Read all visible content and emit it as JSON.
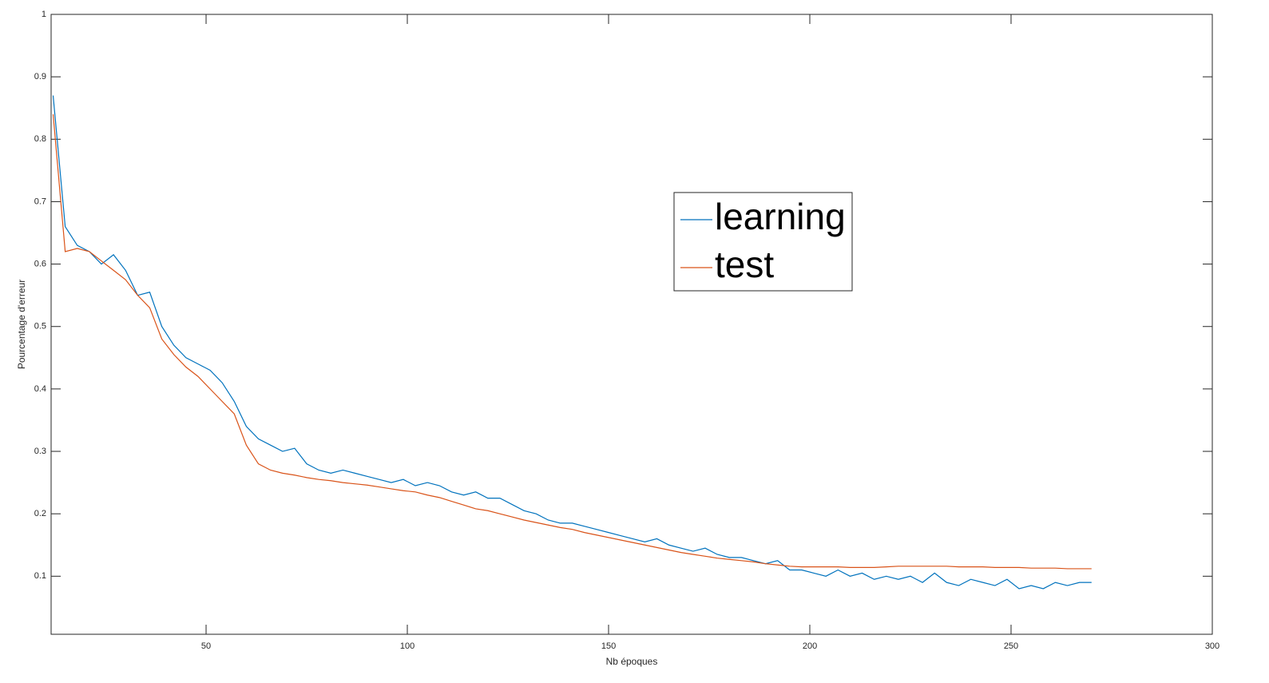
{
  "chart_data": {
    "type": "line",
    "xlabel": "Nb époques",
    "ylabel": "Pourcentage d'erreur",
    "x": [
      12,
      15,
      18,
      21,
      24,
      27,
      30,
      33,
      36,
      39,
      42,
      45,
      48,
      51,
      54,
      57,
      60,
      63,
      66,
      69,
      72,
      75,
      78,
      81,
      84,
      87,
      90,
      93,
      96,
      99,
      102,
      105,
      108,
      111,
      114,
      117,
      120,
      123,
      126,
      129,
      132,
      135,
      138,
      141,
      144,
      147,
      150,
      153,
      156,
      159,
      162,
      165,
      168,
      171,
      174,
      177,
      180,
      183,
      186,
      189,
      192,
      195,
      198,
      201,
      204,
      207,
      210,
      213,
      216,
      219,
      222,
      225,
      228,
      231,
      234,
      237,
      240,
      243,
      246,
      249,
      252,
      255,
      258,
      261,
      264,
      267,
      270
    ],
    "series": [
      {
        "name": "learning",
        "color": "#0072BD",
        "values": [
          0.87,
          0.66,
          0.63,
          0.62,
          0.6,
          0.615,
          0.59,
          0.55,
          0.555,
          0.5,
          0.47,
          0.45,
          0.44,
          0.43,
          0.41,
          0.38,
          0.34,
          0.32,
          0.31,
          0.3,
          0.305,
          0.28,
          0.27,
          0.265,
          0.27,
          0.265,
          0.26,
          0.255,
          0.25,
          0.255,
          0.245,
          0.25,
          0.245,
          0.235,
          0.23,
          0.235,
          0.225,
          0.225,
          0.215,
          0.205,
          0.2,
          0.19,
          0.185,
          0.185,
          0.18,
          0.175,
          0.17,
          0.165,
          0.16,
          0.155,
          0.16,
          0.15,
          0.145,
          0.14,
          0.145,
          0.135,
          0.13,
          0.13,
          0.125,
          0.12,
          0.125,
          0.11,
          0.11,
          0.105,
          0.1,
          0.11,
          0.1,
          0.105,
          0.095,
          0.1,
          0.095,
          0.1,
          0.09,
          0.105,
          0.09,
          0.085,
          0.095,
          0.09,
          0.085,
          0.095,
          0.08,
          0.085,
          0.08,
          0.09,
          0.085,
          0.09,
          0.09
        ]
      },
      {
        "name": "test",
        "color": "#D95319",
        "values": [
          0.84,
          0.62,
          0.625,
          0.62,
          0.605,
          0.59,
          0.575,
          0.55,
          0.53,
          0.48,
          0.455,
          0.435,
          0.42,
          0.4,
          0.38,
          0.36,
          0.31,
          0.28,
          0.27,
          0.265,
          0.262,
          0.258,
          0.255,
          0.253,
          0.25,
          0.248,
          0.246,
          0.243,
          0.24,
          0.237,
          0.235,
          0.23,
          0.226,
          0.22,
          0.214,
          0.208,
          0.205,
          0.2,
          0.195,
          0.19,
          0.186,
          0.182,
          0.178,
          0.175,
          0.17,
          0.166,
          0.162,
          0.158,
          0.154,
          0.15,
          0.146,
          0.142,
          0.138,
          0.135,
          0.132,
          0.129,
          0.127,
          0.125,
          0.123,
          0.12,
          0.118,
          0.116,
          0.115,
          0.115,
          0.115,
          0.115,
          0.114,
          0.114,
          0.114,
          0.115,
          0.116,
          0.116,
          0.116,
          0.116,
          0.116,
          0.115,
          0.115,
          0.115,
          0.114,
          0.114,
          0.114,
          0.113,
          0.113,
          0.113,
          0.112,
          0.112,
          0.112
        ]
      }
    ],
    "xlim": [
      11.5,
      300
    ],
    "xticks": [
      50,
      100,
      150,
      200,
      250,
      300
    ],
    "ylim": [
      0.007,
      1
    ],
    "yticks": [
      0.1,
      0.2,
      0.3,
      0.4,
      0.5,
      0.6,
      0.7,
      0.8,
      0.9,
      1
    ],
    "legend": "inside",
    "grid": false
  }
}
